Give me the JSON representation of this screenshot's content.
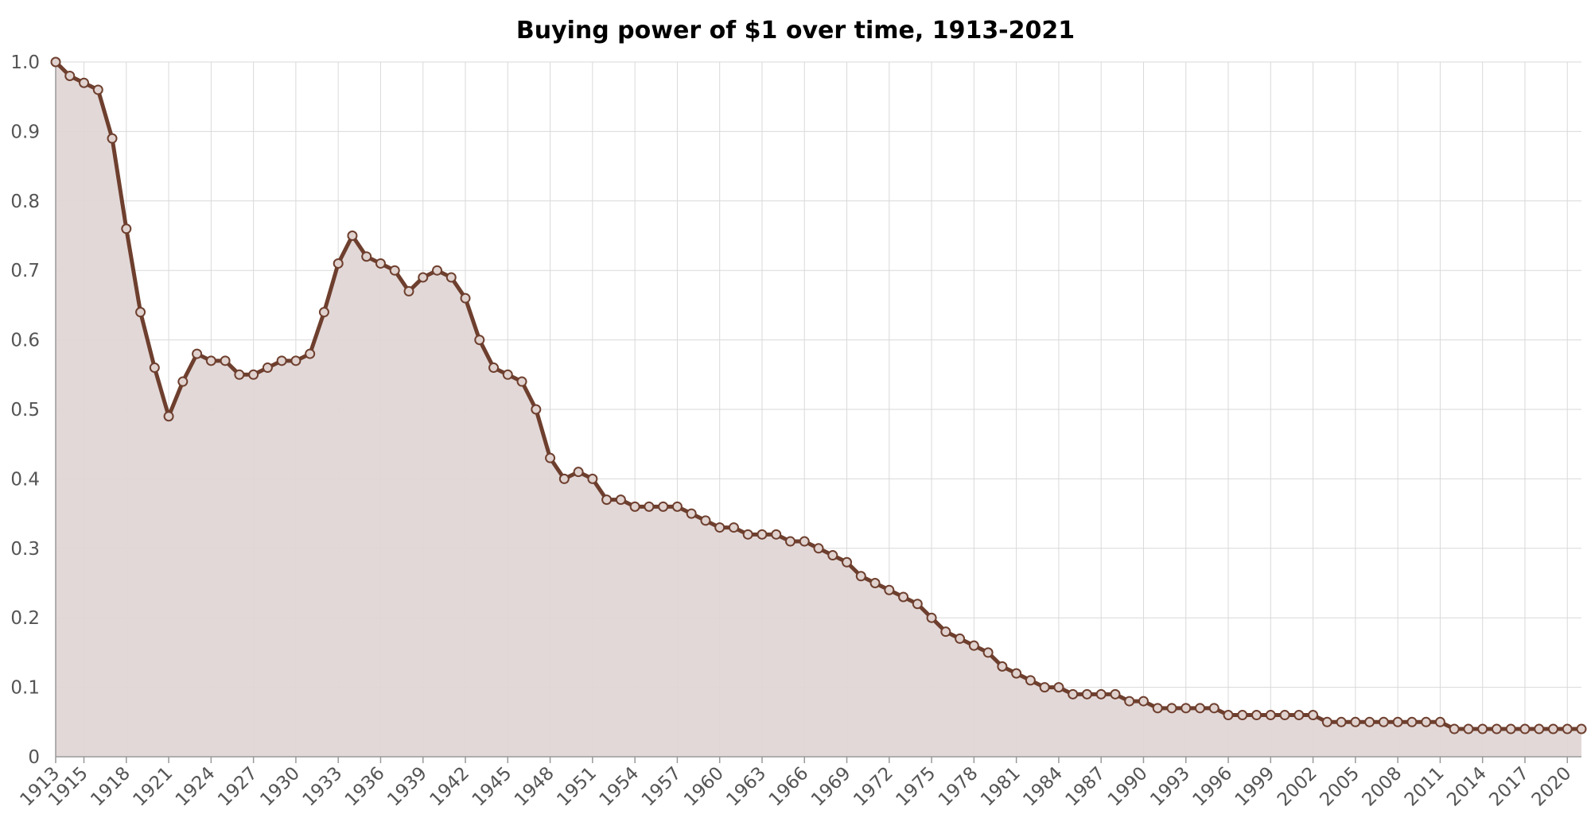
{
  "colors": {
    "line": "#6e3f2e",
    "fill": "#e0d6d6",
    "marker_fill": "#e0d2cf",
    "grid": "#d9d9d9",
    "tick_text": "#555555"
  },
  "chart_data": {
    "type": "area",
    "title": "Buying power of $1 over time, 1913-2021",
    "xlabel": "",
    "ylabel": "",
    "xlim": [
      1913,
      2021
    ],
    "ylim": [
      0,
      1.0
    ],
    "grid": true,
    "y_ticks": [
      "0",
      "0.1",
      "0.2",
      "0.3",
      "0.4",
      "0.5",
      "0.6",
      "0.7",
      "0.8",
      "0.9",
      "1.0"
    ],
    "x_ticks": [
      "1913",
      "1915",
      "1918",
      "1921",
      "1924",
      "1927",
      "1930",
      "1933",
      "1936",
      "1939",
      "1942",
      "1945",
      "1948",
      "1951",
      "1954",
      "1957",
      "1960",
      "1963",
      "1966",
      "1969",
      "1972",
      "1975",
      "1978",
      "1981",
      "1984",
      "1987",
      "1990",
      "1993",
      "1996",
      "1999",
      "2002",
      "2005",
      "2008",
      "2011",
      "2014",
      "2017",
      "2020"
    ],
    "x": [
      1913,
      1914,
      1915,
      1916,
      1917,
      1918,
      1919,
      1920,
      1921,
      1922,
      1923,
      1924,
      1925,
      1926,
      1927,
      1928,
      1929,
      1930,
      1931,
      1932,
      1933,
      1934,
      1935,
      1936,
      1937,
      1938,
      1939,
      1940,
      1941,
      1942,
      1943,
      1944,
      1945,
      1946,
      1947,
      1948,
      1949,
      1950,
      1951,
      1952,
      1953,
      1954,
      1955,
      1956,
      1957,
      1958,
      1959,
      1960,
      1961,
      1962,
      1963,
      1964,
      1965,
      1966,
      1967,
      1968,
      1969,
      1970,
      1971,
      1972,
      1973,
      1974,
      1975,
      1976,
      1977,
      1978,
      1979,
      1980,
      1981,
      1982,
      1983,
      1984,
      1985,
      1986,
      1987,
      1988,
      1989,
      1990,
      1991,
      1992,
      1993,
      1994,
      1995,
      1996,
      1997,
      1998,
      1999,
      2000,
      2001,
      2002,
      2003,
      2004,
      2005,
      2006,
      2007,
      2008,
      2009,
      2010,
      2011,
      2012,
      2013,
      2014,
      2015,
      2016,
      2017,
      2018,
      2019,
      2020,
      2021
    ],
    "series": [
      {
        "values": [
          1.0,
          0.98,
          0.97,
          0.96,
          0.89,
          0.76,
          0.64,
          0.56,
          0.49,
          0.54,
          0.58,
          0.57,
          0.57,
          0.55,
          0.55,
          0.56,
          0.57,
          0.57,
          0.58,
          0.64,
          0.71,
          0.75,
          0.72,
          0.71,
          0.7,
          0.67,
          0.69,
          0.7,
          0.69,
          0.66,
          0.6,
          0.56,
          0.55,
          0.54,
          0.5,
          0.43,
          0.4,
          0.41,
          0.4,
          0.37,
          0.37,
          0.36,
          0.36,
          0.36,
          0.36,
          0.35,
          0.34,
          0.33,
          0.33,
          0.32,
          0.32,
          0.32,
          0.31,
          0.31,
          0.3,
          0.29,
          0.28,
          0.26,
          0.25,
          0.24,
          0.23,
          0.22,
          0.2,
          0.18,
          0.17,
          0.16,
          0.15,
          0.13,
          0.12,
          0.11,
          0.1,
          0.1,
          0.09,
          0.09,
          0.09,
          0.09,
          0.08,
          0.08,
          0.07,
          0.07,
          0.07,
          0.07,
          0.07,
          0.06,
          0.06,
          0.06,
          0.06,
          0.06,
          0.06,
          0.06,
          0.05,
          0.05,
          0.05,
          0.05,
          0.05,
          0.05,
          0.05,
          0.05,
          0.05,
          0.04,
          0.04,
          0.04,
          0.04,
          0.04,
          0.04,
          0.04,
          0.04,
          0.04,
          0.04
        ]
      }
    ]
  }
}
